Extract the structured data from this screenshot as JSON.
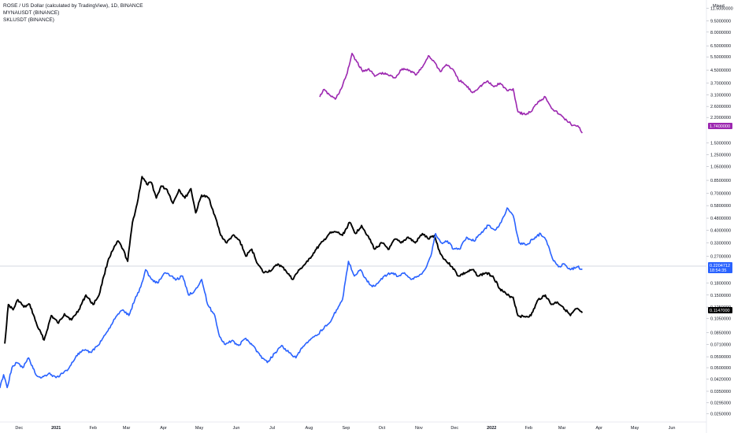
{
  "legend": {
    "line1": "ROSE / US Dollar (calculated by TradingView), 1D, BINANCE",
    "line2": "MYNAUSDT (BINANCE)",
    "line3": "SKLUSDT (BINANCE)"
  },
  "scale_mode": "Mixed",
  "price_ticks": [
    "11.5000000",
    "9.5000000",
    "8.0000000",
    "6.5000000",
    "5.5000000",
    "4.5000000",
    "3.7000000",
    "3.1000000",
    "2.6000000",
    "2.2000000",
    "1.5000000",
    "1.2500000",
    "1.0500000",
    "0.8500000",
    "0.7000000",
    "0.5800000",
    "0.4800000",
    "0.4000000",
    "0.3300000",
    "0.2700000",
    "0.1800000",
    "0.1500000",
    "0.1250000",
    "0.1050000",
    "0.0850000",
    "0.0710000",
    "0.0590000",
    "0.0500000",
    "0.0420000",
    "0.0350000",
    "0.0295000",
    "0.0250000"
  ],
  "time_ticks": [
    "Dec",
    "2021",
    "Feb",
    "Mar",
    "Apr",
    "May",
    "Jun",
    "Jul",
    "Aug",
    "Sep",
    "Oct",
    "Nov",
    "Dec",
    "2022",
    "Feb",
    "Mar",
    "Apr",
    "May",
    "Jun"
  ],
  "colors": {
    "black": "#000000",
    "purple": "#9c27b0",
    "blue": "#2962ff"
  },
  "tags": {
    "purple": "1.7400000",
    "blue": "0.2204712",
    "blue_sub": "18:54:35",
    "black": "0.1147000"
  },
  "chart_data": {
    "type": "line",
    "y_scale": "log",
    "ylim": [
      0.022,
      13.0
    ],
    "xlim": [
      "2020-11-15",
      "2022-06-30"
    ],
    "series": [
      {
        "name": "ROSE / US Dollar (calculated by TradingView), 1D, BINANCE",
        "color": "#000000",
        "points": [
          [
            "2020-11-19",
            0.072
          ],
          [
            "2020-11-22",
            0.13
          ],
          [
            "2020-11-26",
            0.12
          ],
          [
            "2020-11-30",
            0.14
          ],
          [
            "2020-12-05",
            0.125
          ],
          [
            "2020-12-10",
            0.13
          ],
          [
            "2020-12-16",
            0.095
          ],
          [
            "2020-12-22",
            0.076
          ],
          [
            "2020-12-28",
            0.11
          ],
          [
            "2021-01-03",
            0.098
          ],
          [
            "2021-01-08",
            0.113
          ],
          [
            "2021-01-14",
            0.103
          ],
          [
            "2021-01-20",
            0.12
          ],
          [
            "2021-01-26",
            0.15
          ],
          [
            "2021-02-01",
            0.13
          ],
          [
            "2021-02-06",
            0.15
          ],
          [
            "2021-02-10",
            0.2
          ],
          [
            "2021-02-14",
            0.26
          ],
          [
            "2021-02-18",
            0.3
          ],
          [
            "2021-02-22",
            0.34
          ],
          [
            "2021-02-26",
            0.3
          ],
          [
            "2021-03-02",
            0.25
          ],
          [
            "2021-03-06",
            0.45
          ],
          [
            "2021-03-10",
            0.6
          ],
          [
            "2021-03-14",
            0.9
          ],
          [
            "2021-03-18",
            0.8
          ],
          [
            "2021-03-22",
            0.82
          ],
          [
            "2021-03-26",
            0.65
          ],
          [
            "2021-03-30",
            0.78
          ],
          [
            "2021-04-04",
            0.74
          ],
          [
            "2021-04-09",
            0.6
          ],
          [
            "2021-04-14",
            0.74
          ],
          [
            "2021-04-19",
            0.65
          ],
          [
            "2021-04-24",
            0.75
          ],
          [
            "2021-04-28",
            0.52
          ],
          [
            "2021-05-03",
            0.68
          ],
          [
            "2021-05-09",
            0.65
          ],
          [
            "2021-05-14",
            0.5
          ],
          [
            "2021-05-19",
            0.37
          ],
          [
            "2021-05-24",
            0.33
          ],
          [
            "2021-05-29",
            0.37
          ],
          [
            "2021-06-04",
            0.34
          ],
          [
            "2021-06-09",
            0.27
          ],
          [
            "2021-06-14",
            0.3
          ],
          [
            "2021-06-19",
            0.24
          ],
          [
            "2021-06-24",
            0.21
          ],
          [
            "2021-07-01",
            0.22
          ],
          [
            "2021-07-06",
            0.24
          ],
          [
            "2021-07-12",
            0.22
          ],
          [
            "2021-07-18",
            0.19
          ],
          [
            "2021-07-24",
            0.22
          ],
          [
            "2021-07-31",
            0.25
          ],
          [
            "2021-08-07",
            0.3
          ],
          [
            "2021-08-13",
            0.34
          ],
          [
            "2021-08-18",
            0.38
          ],
          [
            "2021-08-24",
            0.39
          ],
          [
            "2021-08-29",
            0.37
          ],
          [
            "2021-09-04",
            0.45
          ],
          [
            "2021-09-09",
            0.38
          ],
          [
            "2021-09-14",
            0.43
          ],
          [
            "2021-09-19",
            0.37
          ],
          [
            "2021-09-25",
            0.3
          ],
          [
            "2021-10-01",
            0.33
          ],
          [
            "2021-10-07",
            0.3
          ],
          [
            "2021-10-12",
            0.35
          ],
          [
            "2021-10-17",
            0.33
          ],
          [
            "2021-10-23",
            0.36
          ],
          [
            "2021-10-29",
            0.33
          ],
          [
            "2021-11-04",
            0.38
          ],
          [
            "2021-11-09",
            0.35
          ],
          [
            "2021-11-14",
            0.37
          ],
          [
            "2021-11-19",
            0.28
          ],
          [
            "2021-11-24",
            0.25
          ],
          [
            "2021-11-29",
            0.23
          ],
          [
            "2021-12-04",
            0.2
          ],
          [
            "2021-12-10",
            0.21
          ],
          [
            "2021-12-16",
            0.22
          ],
          [
            "2021-12-21",
            0.2
          ],
          [
            "2021-12-27",
            0.21
          ],
          [
            "2022-01-02",
            0.2
          ],
          [
            "2022-01-08",
            0.165
          ],
          [
            "2022-01-14",
            0.15
          ],
          [
            "2022-01-19",
            0.145
          ],
          [
            "2022-01-23",
            0.11
          ],
          [
            "2022-01-28",
            0.108
          ],
          [
            "2022-02-03",
            0.11
          ],
          [
            "2022-02-09",
            0.14
          ],
          [
            "2022-02-15",
            0.15
          ],
          [
            "2022-02-20",
            0.13
          ],
          [
            "2022-02-25",
            0.135
          ],
          [
            "2022-03-02",
            0.125
          ],
          [
            "2022-03-08",
            0.11
          ],
          [
            "2022-03-13",
            0.122
          ],
          [
            "2022-03-18",
            0.1147
          ]
        ]
      },
      {
        "name": "MYNAUSDT (BINANCE)",
        "color": "#9c27b0",
        "points": [
          [
            "2021-08-10",
            3.0
          ],
          [
            "2021-08-13",
            3.35
          ],
          [
            "2021-08-18",
            3.1
          ],
          [
            "2021-08-23",
            2.9
          ],
          [
            "2021-08-28",
            3.4
          ],
          [
            "2021-09-02",
            4.3
          ],
          [
            "2021-09-06",
            5.8
          ],
          [
            "2021-09-10",
            5.1
          ],
          [
            "2021-09-15",
            4.4
          ],
          [
            "2021-09-20",
            4.6
          ],
          [
            "2021-09-25",
            4.1
          ],
          [
            "2021-09-30",
            4.3
          ],
          [
            "2021-10-06",
            4.2
          ],
          [
            "2021-10-12",
            4.0
          ],
          [
            "2021-10-18",
            4.6
          ],
          [
            "2021-10-24",
            4.5
          ],
          [
            "2021-10-30",
            4.2
          ],
          [
            "2021-11-04",
            4.7
          ],
          [
            "2021-11-09",
            5.6
          ],
          [
            "2021-11-14",
            5.1
          ],
          [
            "2021-11-19",
            4.4
          ],
          [
            "2021-11-24",
            4.9
          ],
          [
            "2021-11-29",
            4.6
          ],
          [
            "2021-12-04",
            3.9
          ],
          [
            "2021-12-10",
            3.6
          ],
          [
            "2021-12-16",
            3.2
          ],
          [
            "2021-12-22",
            3.5
          ],
          [
            "2021-12-28",
            3.8
          ],
          [
            "2022-01-03",
            3.5
          ],
          [
            "2022-01-08",
            3.7
          ],
          [
            "2022-01-14",
            3.3
          ],
          [
            "2022-01-19",
            3.4
          ],
          [
            "2022-01-23",
            2.4
          ],
          [
            "2022-01-29",
            2.3
          ],
          [
            "2022-02-03",
            2.4
          ],
          [
            "2022-02-09",
            2.8
          ],
          [
            "2022-02-15",
            3.0
          ],
          [
            "2022-02-21",
            2.5
          ],
          [
            "2022-02-27",
            2.3
          ],
          [
            "2022-03-05",
            2.1
          ],
          [
            "2022-03-10",
            1.95
          ],
          [
            "2022-03-15",
            1.9
          ],
          [
            "2022-03-18",
            1.74
          ]
        ]
      },
      {
        "name": "SKLUSDT (BINANCE)",
        "color": "#2962ff",
        "points": [
          [
            "2020-11-10",
            0.075
          ],
          [
            "2020-11-12",
            0.041
          ],
          [
            "2020-11-15",
            0.037
          ],
          [
            "2020-11-18",
            0.045
          ],
          [
            "2020-11-21",
            0.037
          ],
          [
            "2020-11-25",
            0.05
          ],
          [
            "2020-11-29",
            0.054
          ],
          [
            "2020-12-04",
            0.05
          ],
          [
            "2020-12-09",
            0.058
          ],
          [
            "2020-12-15",
            0.045
          ],
          [
            "2020-12-20",
            0.043
          ],
          [
            "2020-12-26",
            0.046
          ],
          [
            "2021-01-01",
            0.043
          ],
          [
            "2021-01-07",
            0.046
          ],
          [
            "2021-01-12",
            0.05
          ],
          [
            "2021-01-18",
            0.06
          ],
          [
            "2021-01-24",
            0.065
          ],
          [
            "2021-01-30",
            0.063
          ],
          [
            "2021-02-05",
            0.07
          ],
          [
            "2021-02-11",
            0.082
          ],
          [
            "2021-02-16",
            0.095
          ],
          [
            "2021-02-21",
            0.11
          ],
          [
            "2021-02-26",
            0.12
          ],
          [
            "2021-03-03",
            0.11
          ],
          [
            "2021-03-08",
            0.14
          ],
          [
            "2021-03-13",
            0.17
          ],
          [
            "2021-03-17",
            0.22
          ],
          [
            "2021-03-22",
            0.19
          ],
          [
            "2021-03-27",
            0.18
          ],
          [
            "2021-04-02",
            0.21
          ],
          [
            "2021-04-07",
            0.2
          ],
          [
            "2021-04-12",
            0.19
          ],
          [
            "2021-04-17",
            0.2
          ],
          [
            "2021-04-22",
            0.15
          ],
          [
            "2021-04-27",
            0.16
          ],
          [
            "2021-05-03",
            0.19
          ],
          [
            "2021-05-08",
            0.13
          ],
          [
            "2021-05-14",
            0.11
          ],
          [
            "2021-05-18",
            0.08
          ],
          [
            "2021-05-23",
            0.071
          ],
          [
            "2021-05-28",
            0.075
          ],
          [
            "2021-06-03",
            0.07
          ],
          [
            "2021-06-09",
            0.078
          ],
          [
            "2021-06-15",
            0.07
          ],
          [
            "2021-06-21",
            0.06
          ],
          [
            "2021-06-27",
            0.054
          ],
          [
            "2021-07-03",
            0.062
          ],
          [
            "2021-07-09",
            0.07
          ],
          [
            "2021-07-15",
            0.063
          ],
          [
            "2021-07-21",
            0.058
          ],
          [
            "2021-07-27",
            0.069
          ],
          [
            "2021-08-02",
            0.076
          ],
          [
            "2021-08-08",
            0.082
          ],
          [
            "2021-08-14",
            0.093
          ],
          [
            "2021-08-19",
            0.1
          ],
          [
            "2021-08-24",
            0.12
          ],
          [
            "2021-08-29",
            0.14
          ],
          [
            "2021-09-03",
            0.25
          ],
          [
            "2021-09-08",
            0.2
          ],
          [
            "2021-09-13",
            0.22
          ],
          [
            "2021-09-18",
            0.19
          ],
          [
            "2021-09-23",
            0.17
          ],
          [
            "2021-09-28",
            0.18
          ],
          [
            "2021-10-03",
            0.2
          ],
          [
            "2021-10-09",
            0.21
          ],
          [
            "2021-10-15",
            0.2
          ],
          [
            "2021-10-20",
            0.21
          ],
          [
            "2021-10-26",
            0.19
          ],
          [
            "2021-11-01",
            0.2
          ],
          [
            "2021-11-06",
            0.22
          ],
          [
            "2021-11-11",
            0.27
          ],
          [
            "2021-11-15",
            0.38
          ],
          [
            "2021-11-20",
            0.33
          ],
          [
            "2021-11-25",
            0.34
          ],
          [
            "2021-11-30",
            0.3
          ],
          [
            "2021-12-05",
            0.3
          ],
          [
            "2021-12-11",
            0.36
          ],
          [
            "2021-12-17",
            0.34
          ],
          [
            "2021-12-23",
            0.38
          ],
          [
            "2021-12-29",
            0.43
          ],
          [
            "2022-01-04",
            0.4
          ],
          [
            "2022-01-09",
            0.45
          ],
          [
            "2022-01-14",
            0.56
          ],
          [
            "2022-01-19",
            0.5
          ],
          [
            "2022-01-24",
            0.33
          ],
          [
            "2022-01-30",
            0.32
          ],
          [
            "2022-02-05",
            0.35
          ],
          [
            "2022-02-11",
            0.38
          ],
          [
            "2022-02-16",
            0.34
          ],
          [
            "2022-02-21",
            0.26
          ],
          [
            "2022-02-26",
            0.23
          ],
          [
            "2022-03-03",
            0.24
          ],
          [
            "2022-03-08",
            0.22
          ],
          [
            "2022-03-14",
            0.23
          ],
          [
            "2022-03-18",
            0.2205
          ]
        ]
      }
    ]
  }
}
